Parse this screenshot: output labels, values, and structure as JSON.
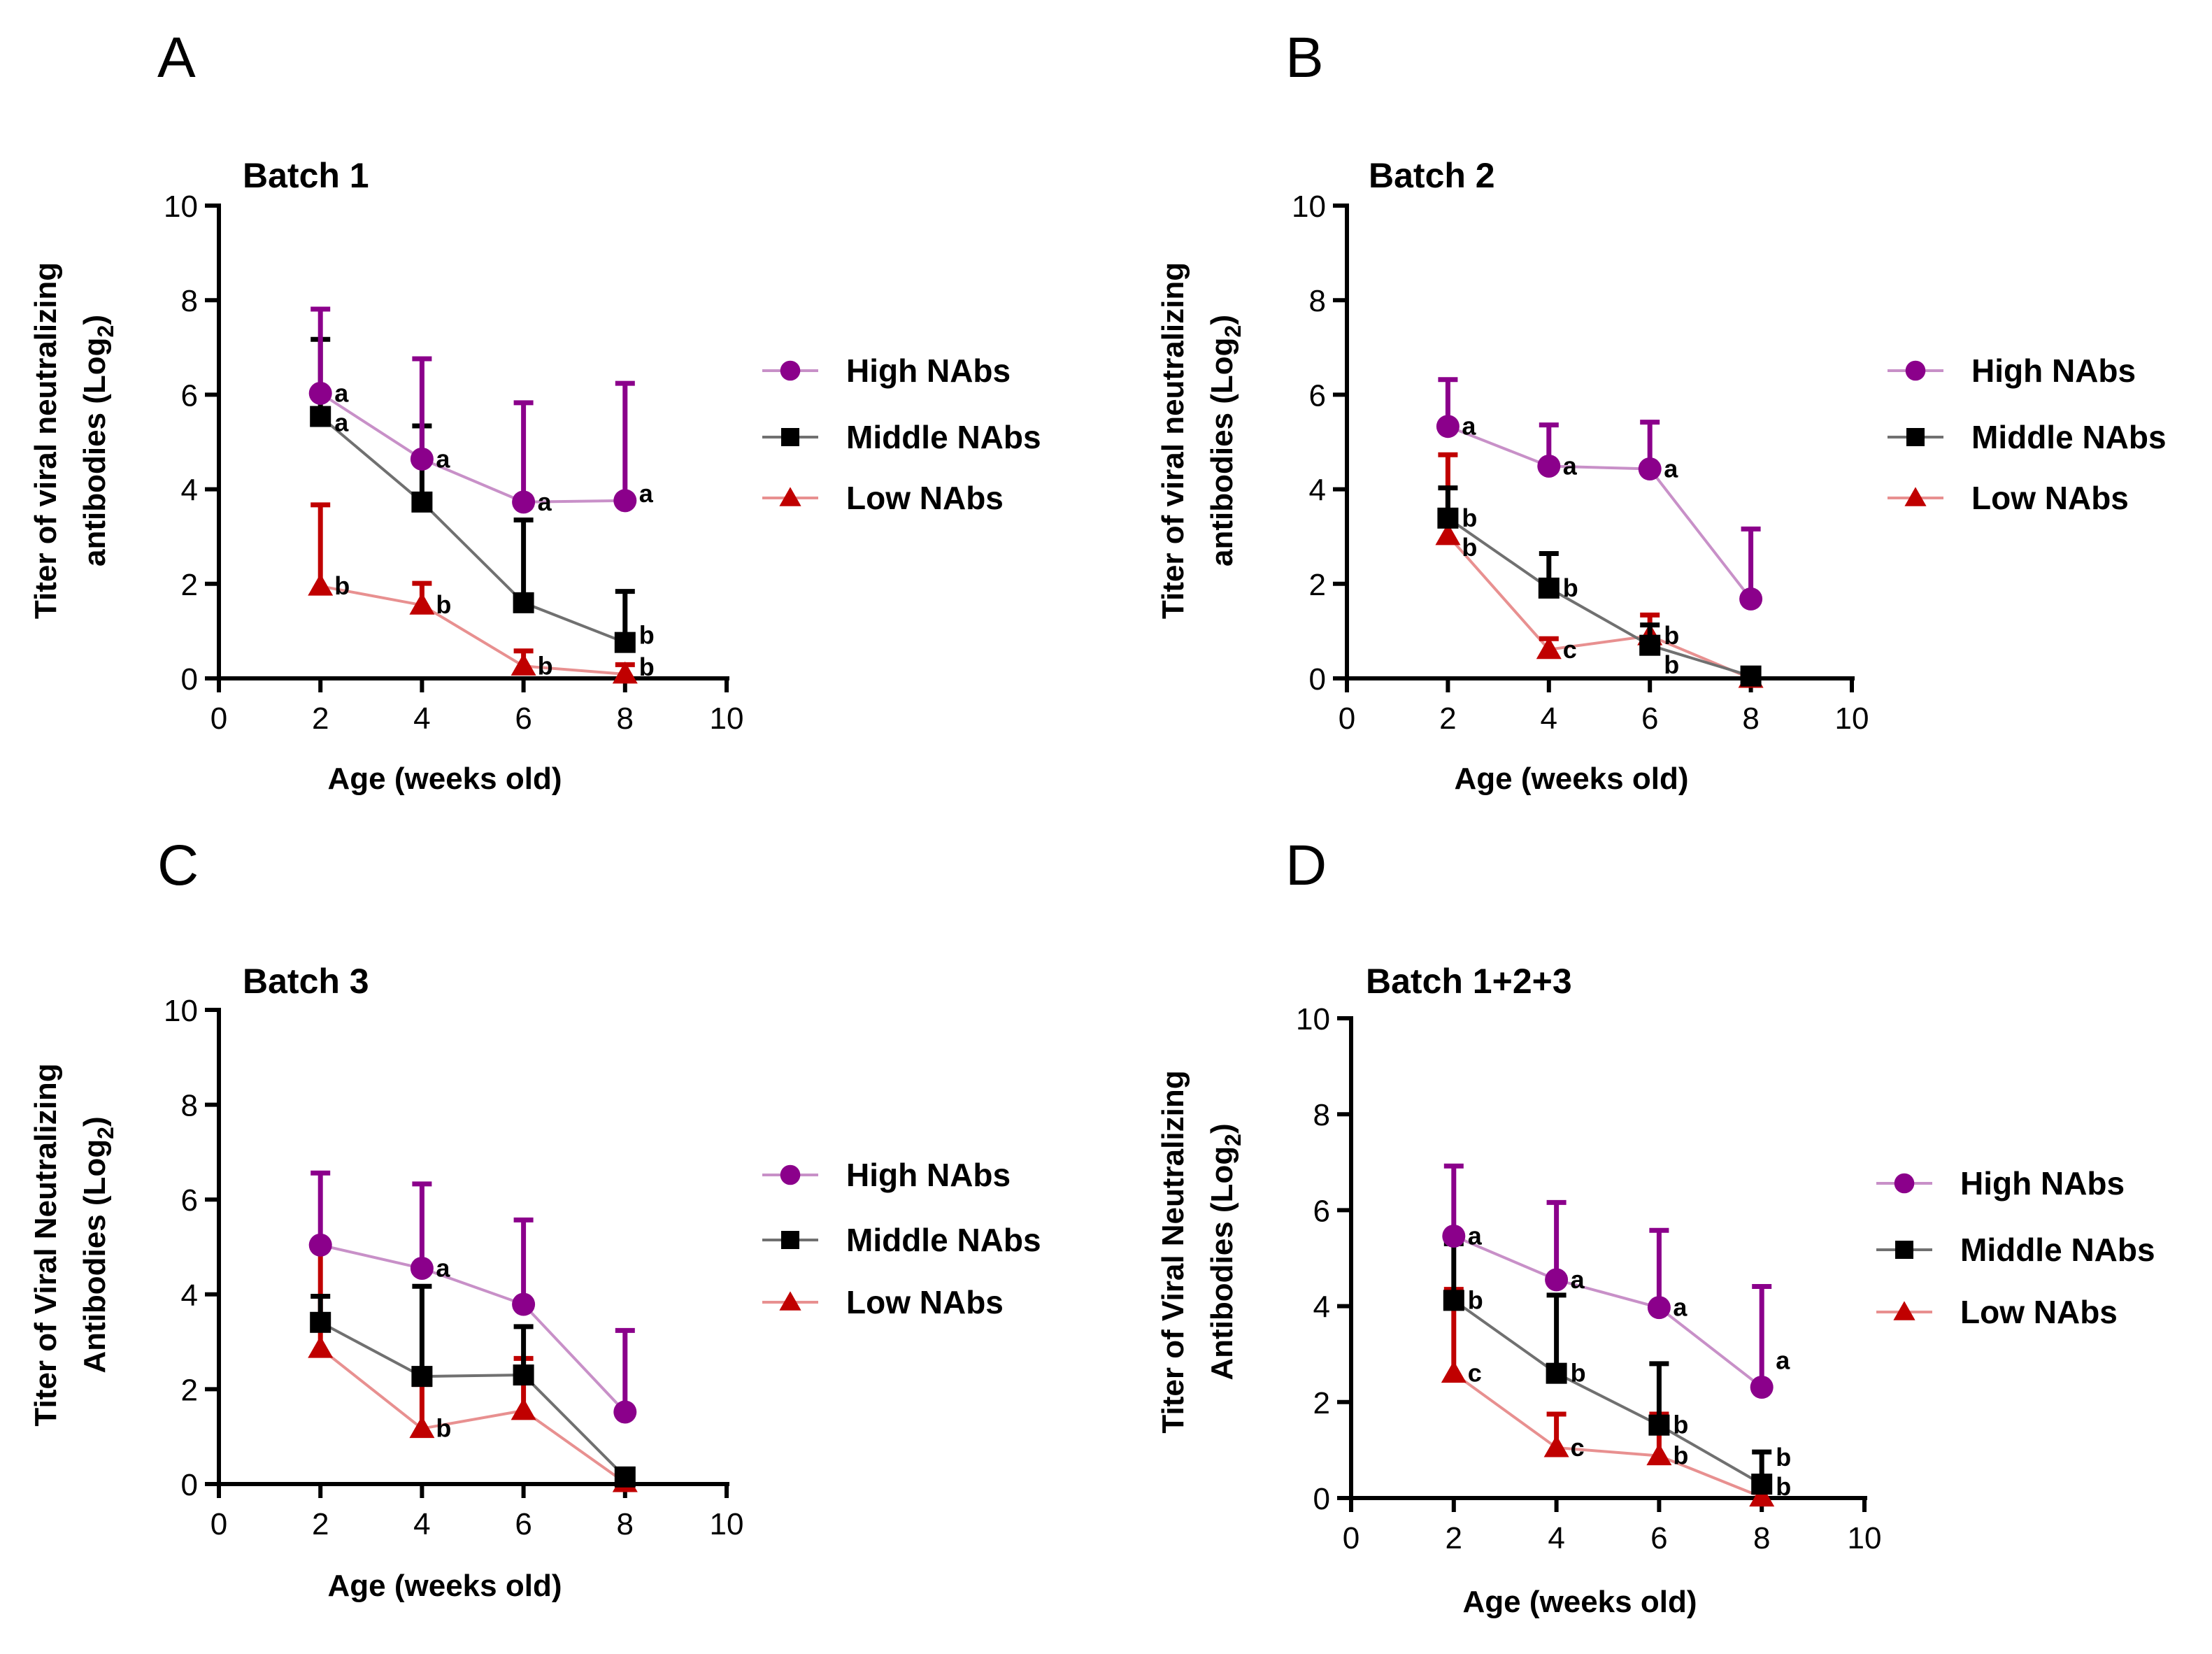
{
  "colors": {
    "High NAbs": "#8B008B",
    "Middle NAbs": "#000000",
    "Low NAbs": "#C00000"
  },
  "line_colors": {
    "High NAbs": "#C890C8",
    "Middle NAbs": "#707070",
    "Low NAbs": "#E89090"
  },
  "chart_data": [
    {
      "type": "line",
      "panel": "A",
      "title": "Batch 1",
      "ylabel": [
        "Titer of viral neutralizing",
        "antibodies (Log",
        "2",
        ")"
      ],
      "xlabel": "Age (weeks old)",
      "xlim": [
        0,
        10
      ],
      "ylim": [
        0,
        10
      ],
      "xticks": [
        0,
        2,
        4,
        6,
        8,
        10
      ],
      "yticks": [
        0,
        2,
        4,
        6,
        8,
        10
      ],
      "legend": "right",
      "x": [
        2,
        4,
        6,
        8
      ],
      "series": [
        {
          "name": "High NAbs",
          "marker": "circle",
          "values": [
            6.03,
            4.64,
            3.73,
            3.76
          ],
          "err_upper": [
            7.81,
            6.76,
            5.83,
            6.24
          ],
          "letters": [
            "a",
            "a",
            "a",
            "a"
          ]
        },
        {
          "name": "Middle NAbs",
          "marker": "square",
          "values": [
            5.54,
            3.73,
            1.6,
            0.76
          ],
          "err_upper": [
            7.17,
            5.34,
            3.35,
            1.84
          ],
          "letters": [
            "a",
            "",
            "",
            "b"
          ]
        },
        {
          "name": "Low NAbs",
          "marker": "triangle",
          "values": [
            1.95,
            1.55,
            0.26,
            0.09
          ],
          "err_upper": [
            3.67,
            2.01,
            0.58,
            0.29
          ],
          "letters": [
            "b",
            "b",
            "b",
            "b"
          ]
        }
      ]
    },
    {
      "type": "line",
      "panel": "B",
      "title": "Batch 2",
      "ylabel": [
        "Titer of viral neutralizing",
        "antibodies (Log",
        "2",
        ")"
      ],
      "xlabel": "Age (weeks old)",
      "xlim": [
        0,
        10
      ],
      "ylim": [
        0,
        10
      ],
      "xticks": [
        0,
        2,
        4,
        6,
        8,
        10
      ],
      "yticks": [
        0,
        2,
        4,
        6,
        8,
        10
      ],
      "legend": "right",
      "x": [
        2,
        4,
        6,
        8
      ],
      "series": [
        {
          "name": "High NAbs",
          "marker": "circle",
          "values": [
            5.33,
            4.49,
            4.43,
            1.68
          ],
          "err_upper": [
            6.32,
            5.36,
            5.42,
            3.16
          ],
          "letters": [
            "a",
            "a",
            "a",
            ""
          ]
        },
        {
          "name": "Middle NAbs",
          "marker": "square",
          "values": [
            3.39,
            1.91,
            0.7,
            0.05
          ],
          "err_upper": [
            4.03,
            2.64,
            1.13,
            0.05
          ],
          "letters": [
            "b",
            "b",
            "b",
            ""
          ]
        },
        {
          "name": "Low NAbs",
          "marker": "triangle",
          "values": [
            3.02,
            0.61,
            0.9,
            0.0
          ],
          "err_upper": [
            4.73,
            0.84,
            1.34,
            0.0
          ],
          "letters": [
            "b",
            "c",
            "b",
            ""
          ]
        }
      ]
    },
    {
      "type": "line",
      "panel": "C",
      "title": "Batch 3",
      "ylabel": [
        "Titer of Viral Neutralizing",
        "Antibodies (Log",
        "2",
        ")"
      ],
      "xlabel": "Age (weeks old)",
      "xlim": [
        0,
        10
      ],
      "ylim": [
        0,
        10
      ],
      "xticks": [
        0,
        2,
        4,
        6,
        8,
        10
      ],
      "yticks": [
        0,
        2,
        4,
        6,
        8,
        10
      ],
      "legend": "right",
      "x": [
        2,
        4,
        6,
        8
      ],
      "series": [
        {
          "name": "High NAbs",
          "marker": "circle",
          "values": [
            5.04,
            4.55,
            3.79,
            1.52
          ],
          "err_upper": [
            6.56,
            6.33,
            5.57,
            3.24
          ],
          "letters": [
            "",
            "a",
            "",
            ""
          ]
        },
        {
          "name": "Middle NAbs",
          "marker": "square",
          "values": [
            3.41,
            2.27,
            2.3,
            0.15
          ],
          "err_upper": [
            3.96,
            4.17,
            3.32,
            0.15
          ],
          "letters": [
            "",
            "",
            "",
            ""
          ]
        },
        {
          "name": "Low NAbs",
          "marker": "triangle",
          "values": [
            2.86,
            1.17,
            1.55,
            0.03
          ],
          "err_upper": [
            5.0,
            2.1,
            2.65,
            0.03
          ],
          "letters": [
            "",
            "b",
            "",
            ""
          ]
        }
      ]
    },
    {
      "type": "line",
      "panel": "D",
      "title": "Batch 1+2+3",
      "ylabel": [
        "Titer of Viral Neutralizing",
        "Antibodies (Log",
        "2",
        ")"
      ],
      "xlabel": "Age (weeks old)",
      "xlim": [
        0,
        10
      ],
      "ylim": [
        0,
        10
      ],
      "xticks": [
        0,
        2,
        4,
        6,
        8,
        10
      ],
      "yticks": [
        0,
        2,
        4,
        6,
        8,
        10
      ],
      "legend": "right",
      "x": [
        2,
        4,
        6,
        8
      ],
      "series": [
        {
          "name": "High NAbs",
          "marker": "circle",
          "values": [
            5.46,
            4.55,
            3.97,
            2.31
          ],
          "err_upper": [
            6.92,
            6.16,
            5.58,
            4.41
          ],
          "letters": [
            "a",
            "a",
            "a",
            "a"
          ]
        },
        {
          "name": "Middle NAbs",
          "marker": "square",
          "values": [
            4.12,
            2.6,
            1.52,
            0.29
          ],
          "err_upper": [
            5.3,
            4.23,
            2.8,
            0.96
          ],
          "letters": [
            "b",
            "b",
            "b",
            "b"
          ]
        },
        {
          "name": "Low NAbs",
          "marker": "triangle",
          "values": [
            2.6,
            1.05,
            0.88,
            0.02
          ],
          "err_upper": [
            4.35,
            1.75,
            1.75,
            0.02
          ],
          "letters": [
            "c",
            "c",
            "b",
            "b"
          ]
        }
      ]
    }
  ]
}
